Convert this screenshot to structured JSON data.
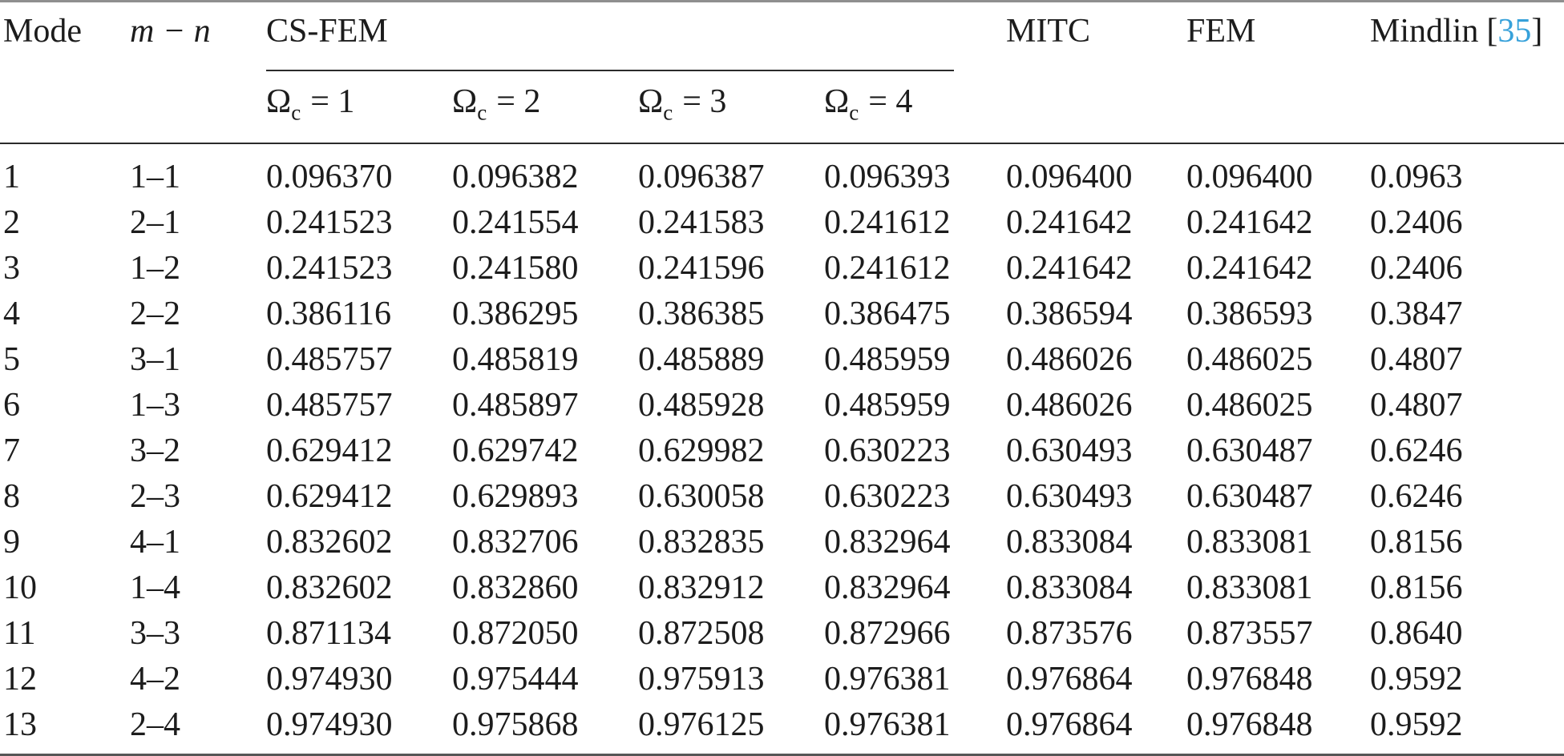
{
  "table": {
    "headers": {
      "mode": "Mode",
      "mn": "m − n",
      "group_label": "CS-FEM",
      "subs": [
        {
          "omega": "Ω",
          "sub": "c",
          "eq": "= 1"
        },
        {
          "omega": "Ω",
          "sub": "c",
          "eq": "= 2"
        },
        {
          "omega": "Ω",
          "sub": "c",
          "eq": "= 3"
        },
        {
          "omega": "Ω",
          "sub": "c",
          "eq": "= 4"
        }
      ],
      "mitc": "MITC",
      "fem": "FEM",
      "mindlin_label": "Mindlin",
      "cite_open": "[",
      "cite": "35",
      "cite_close": "]"
    },
    "rows": [
      {
        "mode": "1",
        "mn": "1–1",
        "w1": "0.096370",
        "w2": "0.096382",
        "w3": "0.096387",
        "w4": "0.096393",
        "mitc": "0.096400",
        "fem": "0.096400",
        "mindlin": "0.0963"
      },
      {
        "mode": "2",
        "mn": "2–1",
        "w1": "0.241523",
        "w2": "0.241554",
        "w3": "0.241583",
        "w4": "0.241612",
        "mitc": "0.241642",
        "fem": "0.241642",
        "mindlin": "0.2406"
      },
      {
        "mode": "3",
        "mn": "1–2",
        "w1": "0.241523",
        "w2": "0.241580",
        "w3": "0.241596",
        "w4": "0.241612",
        "mitc": "0.241642",
        "fem": "0.241642",
        "mindlin": "0.2406"
      },
      {
        "mode": "4",
        "mn": "2–2",
        "w1": "0.386116",
        "w2": "0.386295",
        "w3": "0.386385",
        "w4": "0.386475",
        "mitc": "0.386594",
        "fem": "0.386593",
        "mindlin": "0.3847"
      },
      {
        "mode": "5",
        "mn": "3–1",
        "w1": "0.485757",
        "w2": "0.485819",
        "w3": "0.485889",
        "w4": "0.485959",
        "mitc": "0.486026",
        "fem": "0.486025",
        "mindlin": "0.4807"
      },
      {
        "mode": "6",
        "mn": "1–3",
        "w1": "0.485757",
        "w2": "0.485897",
        "w3": "0.485928",
        "w4": "0.485959",
        "mitc": "0.486026",
        "fem": "0.486025",
        "mindlin": "0.4807"
      },
      {
        "mode": "7",
        "mn": "3–2",
        "w1": "0.629412",
        "w2": "0.629742",
        "w3": "0.629982",
        "w4": "0.630223",
        "mitc": "0.630493",
        "fem": "0.630487",
        "mindlin": "0.6246"
      },
      {
        "mode": "8",
        "mn": "2–3",
        "w1": "0.629412",
        "w2": "0.629893",
        "w3": "0.630058",
        "w4": "0.630223",
        "mitc": "0.630493",
        "fem": "0.630487",
        "mindlin": "0.6246"
      },
      {
        "mode": "9",
        "mn": "4–1",
        "w1": "0.832602",
        "w2": "0.832706",
        "w3": "0.832835",
        "w4": "0.832964",
        "mitc": "0.833084",
        "fem": "0.833081",
        "mindlin": "0.8156"
      },
      {
        "mode": "10",
        "mn": "1–4",
        "w1": "0.832602",
        "w2": "0.832860",
        "w3": "0.832912",
        "w4": "0.832964",
        "mitc": "0.833084",
        "fem": "0.833081",
        "mindlin": "0.8156"
      },
      {
        "mode": "11",
        "mn": "3–3",
        "w1": "0.871134",
        "w2": "0.872050",
        "w3": "0.872508",
        "w4": "0.872966",
        "mitc": "0.873576",
        "fem": "0.873557",
        "mindlin": "0.8640"
      },
      {
        "mode": "12",
        "mn": "4–2",
        "w1": "0.974930",
        "w2": "0.975444",
        "w3": "0.975913",
        "w4": "0.976381",
        "mitc": "0.976864",
        "fem": "0.976848",
        "mindlin": "0.9592"
      },
      {
        "mode": "13",
        "mn": "2–4",
        "w1": "0.974930",
        "w2": "0.975868",
        "w3": "0.976125",
        "w4": "0.976381",
        "mitc": "0.976864",
        "fem": "0.976848",
        "mindlin": "0.9592"
      }
    ]
  },
  "colors": {
    "citation_blue": "#37A1DA",
    "text": "#1c1c1c",
    "rule_dark": "#2b2b2b",
    "rule_top_gray": "#8f8f8f"
  }
}
